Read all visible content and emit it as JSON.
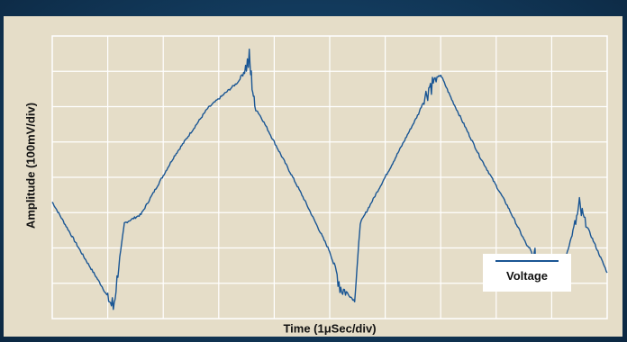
{
  "chart_data": {
    "type": "line",
    "title": "",
    "xlabel": "Time (1μSec/div)",
    "ylabel": "Amplitude (100mV/div)",
    "x_divisions": 10,
    "y_divisions": 8,
    "xlim": [
      0,
      10
    ],
    "ylim": [
      0,
      8
    ],
    "grid": true,
    "legend_position": "bottom-right",
    "series": [
      {
        "name": "Voltage",
        "color": "#1a5694",
        "x": [
          0,
          0.55,
          0.9,
          1.1,
          1.3,
          1.6,
          2.2,
          2.8,
          3.35,
          3.55,
          3.65,
          3.8,
          4.5,
          5.0,
          5.2,
          5.45,
          5.55,
          6.1,
          6.6,
          6.8,
          7.0,
          7.2,
          7.7,
          8.2,
          8.7,
          9.1,
          9.5,
          10.0
        ],
        "y": [
          3.3,
          1.8,
          0.9,
          0.3,
          2.7,
          2.95,
          4.6,
          5.95,
          6.7,
          7.3,
          6.0,
          5.6,
          3.5,
          1.9,
          0.9,
          0.5,
          2.7,
          4.3,
          5.8,
          6.6,
          6.9,
          6.2,
          4.6,
          3.2,
          1.6,
          0.9,
          3.1,
          1.3
        ],
        "noise_bursts": [
          1.1,
          3.55,
          5.2,
          6.8,
          8.7,
          9.5
        ]
      }
    ]
  }
}
